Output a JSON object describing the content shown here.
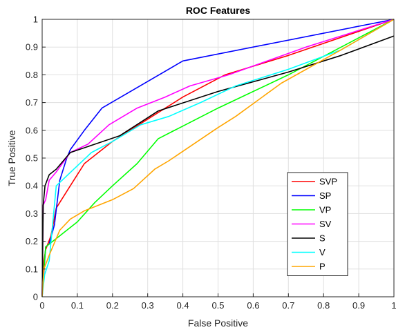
{
  "chart_data": {
    "type": "line",
    "title": "ROC Features",
    "xlabel": "False Positive",
    "ylabel": "True Positive",
    "xlim": [
      0,
      1
    ],
    "ylim": [
      0,
      1
    ],
    "xticks": [
      "0",
      "0.1",
      "0.2",
      "0.3",
      "0.4",
      "0.5",
      "0.6",
      "0.7",
      "0.8",
      "0.9",
      "1"
    ],
    "yticks": [
      "0",
      "0.1",
      "0.2",
      "0.3",
      "0.4",
      "0.5",
      "0.6",
      "0.7",
      "0.8",
      "0.9",
      "1"
    ],
    "grid": true,
    "legend_position": "bottom-right",
    "series": [
      {
        "name": "SVP",
        "color": "#ff0000",
        "x": [
          0,
          0.005,
          0.01,
          0.025,
          0.04,
          0.08,
          0.12,
          0.2,
          0.3,
          0.4,
          0.52,
          0.7,
          1.0
        ],
        "y": [
          0,
          0.13,
          0.17,
          0.22,
          0.32,
          0.4,
          0.48,
          0.56,
          0.64,
          0.72,
          0.8,
          0.87,
          1.0
        ]
      },
      {
        "name": "SP",
        "color": "#0000ff",
        "x": [
          0,
          0.01,
          0.02,
          0.035,
          0.05,
          0.07,
          0.08,
          0.12,
          0.17,
          0.4,
          1.0
        ],
        "y": [
          0,
          0.18,
          0.19,
          0.26,
          0.42,
          0.5,
          0.53,
          0.6,
          0.68,
          0.85,
          1.0
        ]
      },
      {
        "name": "VP",
        "color": "#00ff00",
        "x": [
          0,
          0.005,
          0.01,
          0.05,
          0.1,
          0.15,
          0.2,
          0.27,
          0.33,
          0.5,
          0.7,
          1.0
        ],
        "y": [
          0,
          0.1,
          0.18,
          0.22,
          0.27,
          0.34,
          0.4,
          0.48,
          0.57,
          0.68,
          0.8,
          1.0
        ]
      },
      {
        "name": "SV",
        "color": "#ff00ff",
        "x": [
          0,
          0.003,
          0.01,
          0.02,
          0.04,
          0.08,
          0.13,
          0.19,
          0.27,
          0.35,
          0.42,
          0.53,
          0.75,
          1.0
        ],
        "y": [
          0,
          0.33,
          0.35,
          0.42,
          0.45,
          0.52,
          0.55,
          0.62,
          0.68,
          0.72,
          0.76,
          0.8,
          0.9,
          1.0
        ]
      },
      {
        "name": "S",
        "color": "#000000",
        "x": [
          0,
          0.003,
          0.008,
          0.02,
          0.04,
          0.08,
          0.15,
          0.22,
          0.33,
          0.5,
          0.7,
          0.85,
          1.0
        ],
        "y": [
          0,
          0.33,
          0.4,
          0.44,
          0.46,
          0.52,
          0.55,
          0.58,
          0.67,
          0.74,
          0.81,
          0.87,
          0.94
        ]
      },
      {
        "name": "V",
        "color": "#00ffff",
        "x": [
          0,
          0.007,
          0.02,
          0.04,
          0.09,
          0.14,
          0.2,
          0.28,
          0.36,
          0.45,
          0.55,
          0.7,
          0.85,
          1.0
        ],
        "y": [
          0,
          0.08,
          0.13,
          0.4,
          0.46,
          0.52,
          0.56,
          0.62,
          0.65,
          0.7,
          0.76,
          0.82,
          0.89,
          1.0
        ]
      },
      {
        "name": "P",
        "color": "#ffa500",
        "x": [
          0,
          0.005,
          0.02,
          0.05,
          0.08,
          0.12,
          0.2,
          0.26,
          0.32,
          0.36,
          0.5,
          0.55,
          0.68,
          0.85,
          1.0
        ],
        "y": [
          0,
          0.1,
          0.15,
          0.24,
          0.28,
          0.31,
          0.35,
          0.39,
          0.46,
          0.49,
          0.61,
          0.65,
          0.77,
          0.89,
          1.0
        ]
      }
    ]
  }
}
